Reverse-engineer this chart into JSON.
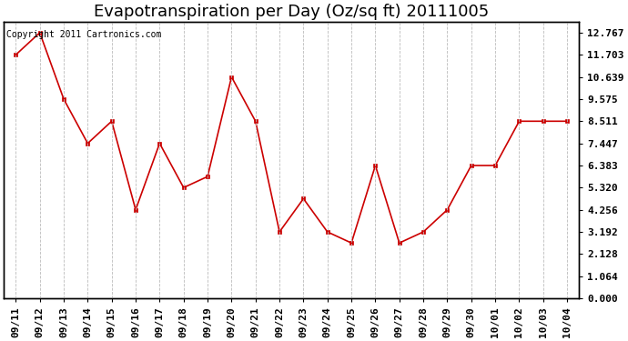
{
  "title": "Evapotranspiration per Day (Oz/sq ft) 20111005",
  "copyright": "Copyright 2011 Cartronics.com",
  "x_labels": [
    "09/11",
    "09/12",
    "09/13",
    "09/14",
    "09/15",
    "09/16",
    "09/17",
    "09/18",
    "09/19",
    "09/20",
    "09/21",
    "09/22",
    "09/23",
    "09/24",
    "09/25",
    "09/26",
    "09/27",
    "09/28",
    "09/29",
    "09/30",
    "10/01",
    "10/02",
    "10/03",
    "10/04"
  ],
  "y_values": [
    11.703,
    12.767,
    9.575,
    7.447,
    8.511,
    4.256,
    7.447,
    5.32,
    5.852,
    10.639,
    8.511,
    3.192,
    4.788,
    3.192,
    2.66,
    6.383,
    2.66,
    3.192,
    4.256,
    6.383,
    6.383,
    8.511,
    8.511,
    8.511
  ],
  "line_color": "#cc0000",
  "marker": "s",
  "marker_size": 3,
  "background_color": "#ffffff",
  "grid_color": "#bbbbbb",
  "y_ticks": [
    0.0,
    1.064,
    2.128,
    3.192,
    4.256,
    5.32,
    6.383,
    7.447,
    8.511,
    9.575,
    10.639,
    11.703,
    12.767
  ],
  "ylim": [
    0.0,
    13.3
  ],
  "xlim": [
    -0.5,
    23.5
  ],
  "title_fontsize": 13,
  "tick_fontsize": 8,
  "copyright_fontsize": 7
}
